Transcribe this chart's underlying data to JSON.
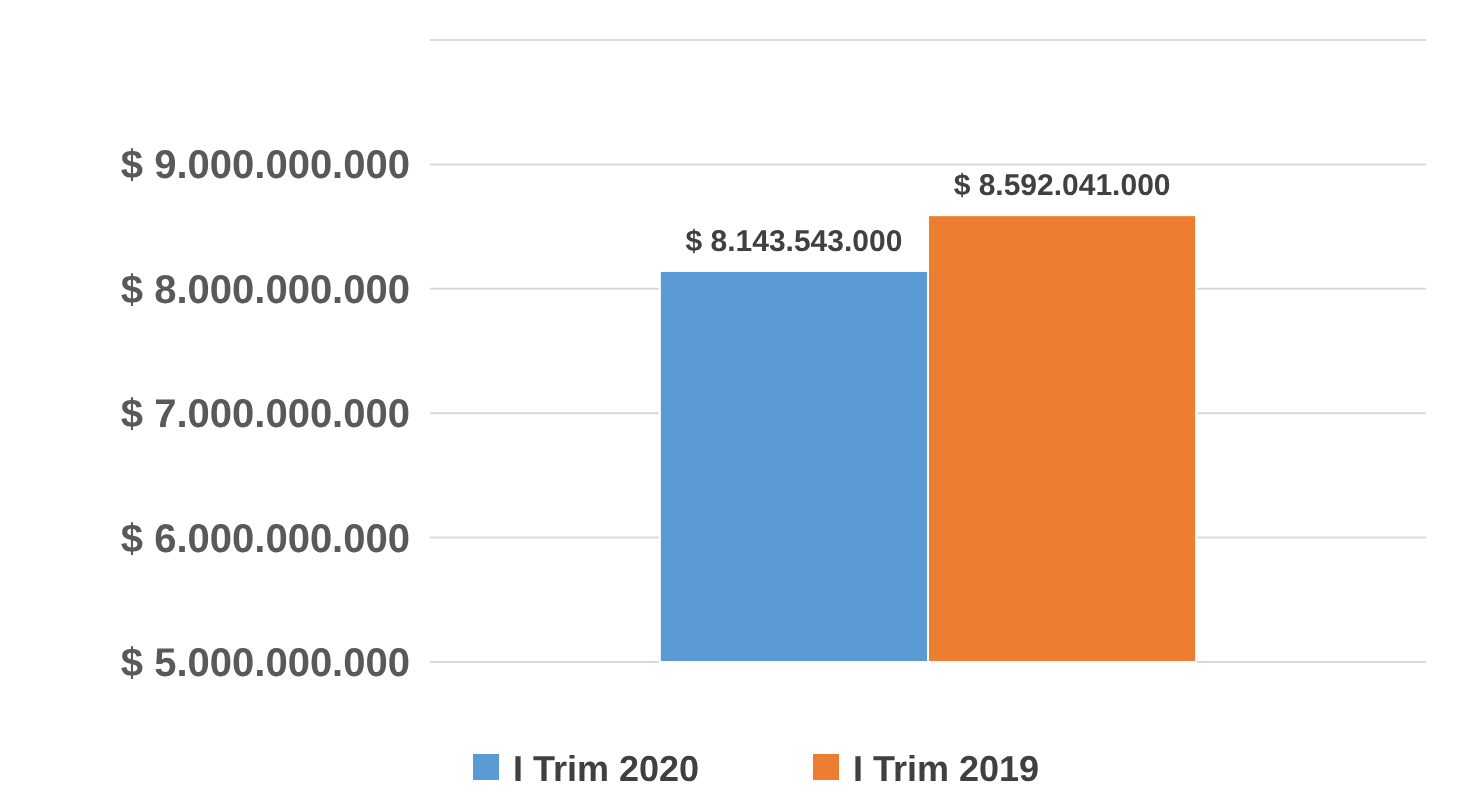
{
  "chart_data": {
    "type": "bar",
    "categories": [
      null
    ],
    "series": [
      {
        "name": "I Trim 2020",
        "color": "#5b9bd5",
        "values": [
          8143543000
        ],
        "value_labels": [
          "$ 8.143.543.000"
        ]
      },
      {
        "name": "I Trim 2019",
        "color": "#ed7d31",
        "values": [
          8592041000
        ],
        "value_labels": [
          "$ 8.592.041.000"
        ]
      }
    ],
    "ylim": [
      5000000000,
      10000000000
    ],
    "yticks": [
      {
        "value": 5000000000,
        "label": "$ 5.000.000.000"
      },
      {
        "value": 6000000000,
        "label": "$ 6.000.000.000"
      },
      {
        "value": 7000000000,
        "label": "$ 7.000.000.000"
      },
      {
        "value": 8000000000,
        "label": "$ 8.000.000.000"
      },
      {
        "value": 9000000000,
        "label": "$ 9.000.000.000"
      },
      {
        "value": 10000000000,
        "label": null
      }
    ],
    "grid": true,
    "legend": "bottom"
  }
}
